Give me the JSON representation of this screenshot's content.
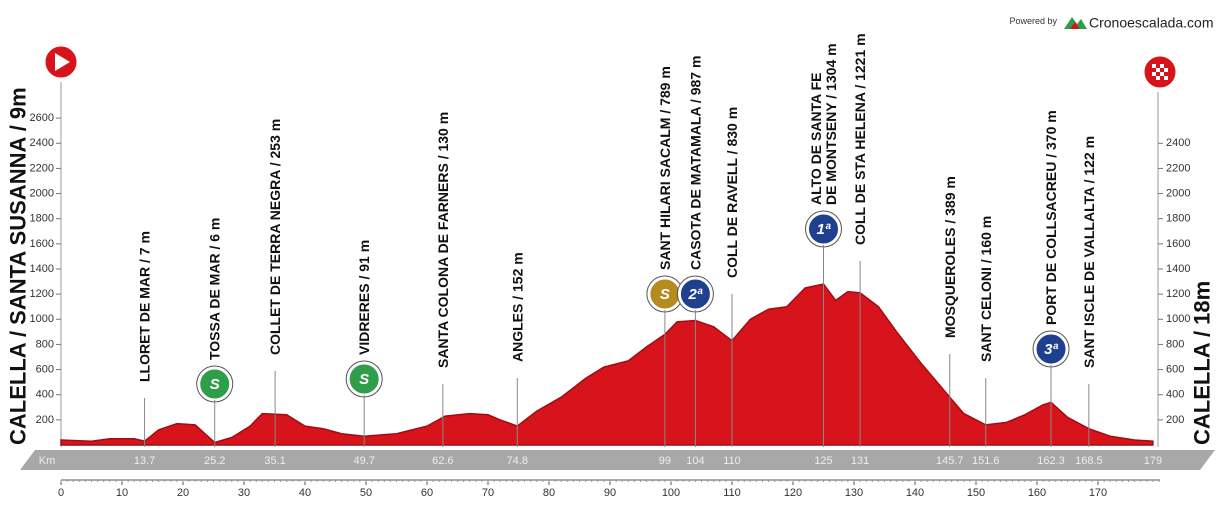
{
  "chart_data": {
    "type": "area",
    "powered_by": "Powered by",
    "brand": "Cronoescalada.com",
    "start_label": "CALELLA / SANTA SUSANNA / 9m",
    "finish_label": "CALELLA / 18m",
    "km_label": "Km",
    "finish_km": 179,
    "color": "#d7141c",
    "x": [
      0,
      5,
      8,
      12,
      13.7,
      16,
      19,
      22,
      25.2,
      28,
      31,
      33,
      37,
      40,
      43,
      46,
      49.7,
      55,
      60,
      63,
      67,
      70,
      72,
      74.8,
      78,
      82,
      86,
      89,
      93,
      96,
      99,
      101,
      104,
      107,
      110,
      113,
      116,
      119,
      122,
      125,
      127,
      129,
      131,
      134,
      137,
      141,
      145.7,
      148,
      151.6,
      155,
      158,
      161,
      162.3,
      165,
      168.5,
      172,
      176,
      179
    ],
    "values": [
      40,
      30,
      50,
      50,
      30,
      120,
      170,
      160,
      20,
      60,
      150,
      250,
      240,
      150,
      130,
      90,
      70,
      90,
      150,
      230,
      250,
      240,
      200,
      150,
      270,
      380,
      530,
      620,
      670,
      780,
      880,
      980,
      990,
      940,
      830,
      1000,
      1080,
      1100,
      1250,
      1280,
      1150,
      1220,
      1210,
      1100,
      900,
      650,
      380,
      250,
      160,
      180,
      240,
      320,
      340,
      220,
      130,
      70,
      40,
      30
    ],
    "xlim": [
      0,
      180
    ],
    "xticks": [
      0,
      10,
      20,
      30,
      40,
      50,
      60,
      70,
      80,
      90,
      100,
      110,
      120,
      130,
      140,
      150,
      160,
      170
    ],
    "ylim": [
      0,
      2800
    ],
    "yticks": [
      200,
      400,
      600,
      800,
      1000,
      1200,
      1400,
      1600,
      1800,
      2000,
      2200,
      2400,
      2600
    ],
    "y2lim": [
      0,
      2800
    ],
    "y2ticks": [
      200,
      400,
      600,
      800,
      1000,
      1200,
      1400,
      1600,
      1800,
      2000,
      2200,
      2400
    ],
    "waypoints": [
      {
        "label": "LLORET DE MAR / 7 m",
        "km": 13.7
      },
      {
        "label": "TOSSA DE MAR / 6 m",
        "km": 25.2,
        "badge": "S",
        "badge_color": "#2e9e4a"
      },
      {
        "label": "COLLET  DE  TERRA  NEGRA / 253 m",
        "km": 35.1
      },
      {
        "label": "VIDRERES / 91 m",
        "km": 49.7,
        "badge": "S",
        "badge_color": "#2e9e4a"
      },
      {
        "label": "SANTA COLONA DE FARNERS / 130 m",
        "km": 62.6
      },
      {
        "label": "ANGLES / 152 m",
        "km": 74.8
      },
      {
        "label": "SANT HILARI SACALM / 789 m",
        "km": 99,
        "badge": "S",
        "badge_color": "#b58a1e"
      },
      {
        "label": "CASOTA  DE  MATAMALA / 987 m",
        "km": 104,
        "badge": "2ª",
        "badge_color": "#1f3f8f"
      },
      {
        "label": "COLL DE RAVELL / 830 m",
        "km": 110
      },
      {
        "label": [
          "ALTO  DE  SANTA  FE",
          "DE MONTSENY / 1304 m"
        ],
        "km": 125,
        "badge": "1ª",
        "badge_color": "#1f3f8f"
      },
      {
        "label": "COLL  DE  STA  HELENA / 1221 m",
        "km": 131
      },
      {
        "label": "MOSQUEROLES / 389 m",
        "km": 145.7
      },
      {
        "label": "SANT CELONI / 160 m",
        "km": 151.6
      },
      {
        "label": "PORT  DE  COLLSACREU / 370 m",
        "km": 162.3,
        "badge": "3ª",
        "badge_color": "#1f3f8f"
      },
      {
        "label": "SANT ISCLE DE VALLALTA / 122 m",
        "km": 168.5
      }
    ]
  }
}
